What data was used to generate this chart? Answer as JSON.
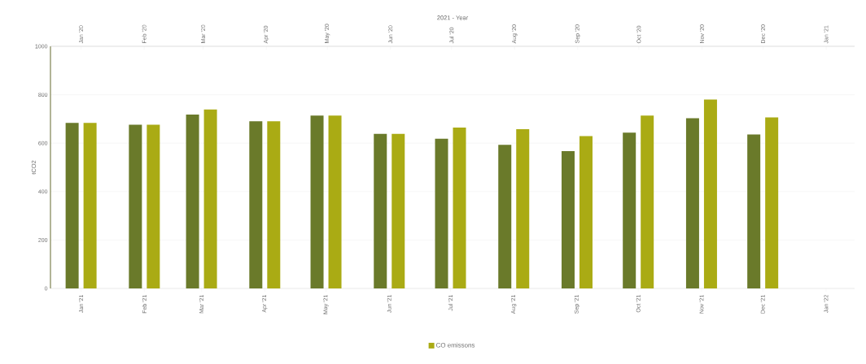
{
  "chart_data": {
    "type": "bar",
    "x2label": "2021 - Year",
    "ylabel": "tCO2",
    "x": [
      "2021-01",
      "2021-02",
      "2021-03",
      "2021-04",
      "2021-05",
      "2021-06",
      "2021-07",
      "2021-08",
      "2021-09",
      "2021-10",
      "2021-11",
      "2021-12"
    ],
    "series": [
      {
        "color": "#6a7a2a",
        "values": [
          684,
          676,
          718,
          690,
          714,
          638,
          618,
          593,
          567,
          643,
          703,
          636
        ]
      },
      {
        "name": "CO emissons",
        "color": "#aaab14",
        "values": [
          684,
          676,
          739,
          690,
          714,
          638,
          664,
          658,
          629,
          714,
          780,
          706
        ]
      }
    ],
    "xlim": [
      "2020-12-17",
      "2022-01-15"
    ],
    "xticks": [
      {
        "value": "2021-01",
        "label": "Jan '21"
      },
      {
        "value": "2021-02",
        "label": "Feb '21"
      },
      {
        "value": "2021-03",
        "label": "Mar '21"
      },
      {
        "value": "2021-04",
        "label": "Apr '21"
      },
      {
        "value": "2021-05",
        "label": "May '21"
      },
      {
        "value": "2021-06",
        "label": "Jun '21"
      },
      {
        "value": "2021-07",
        "label": "Jul '21"
      },
      {
        "value": "2021-08",
        "label": "Aug '21"
      },
      {
        "value": "2021-09",
        "label": "Sep '21"
      },
      {
        "value": "2021-10",
        "label": "Oct '21"
      },
      {
        "value": "2021-11",
        "label": "Nov '21"
      },
      {
        "value": "2021-12",
        "label": "Dec '21"
      },
      {
        "value": "2022-01",
        "label": "Jan '22"
      }
    ],
    "x2lim": [
      "2019-12-17",
      "2021-01-15"
    ],
    "x2ticks": [
      {
        "value": "2020-01",
        "label": "Jan '20"
      },
      {
        "value": "2020-02",
        "label": "Feb '20"
      },
      {
        "value": "2020-03",
        "label": "Mar '20"
      },
      {
        "value": "2020-04",
        "label": "Apr '20"
      },
      {
        "value": "2020-05",
        "label": "May '20"
      },
      {
        "value": "2020-06",
        "label": "Jun '20"
      },
      {
        "value": "2020-07",
        "label": "Jul '20"
      },
      {
        "value": "2020-08",
        "label": "Aug '20"
      },
      {
        "value": "2020-09",
        "label": "Sep '20"
      },
      {
        "value": "2020-10",
        "label": "Oct '20"
      },
      {
        "value": "2020-11",
        "label": "Nov '20"
      },
      {
        "value": "2020-12",
        "label": "Dec '20"
      },
      {
        "value": "2021-01",
        "label": "Jan '21"
      }
    ],
    "ylim": [
      0,
      1000
    ],
    "yticks": [
      0,
      200,
      400,
      600,
      800,
      1000
    ],
    "grid": "y",
    "legend": "bottom"
  }
}
